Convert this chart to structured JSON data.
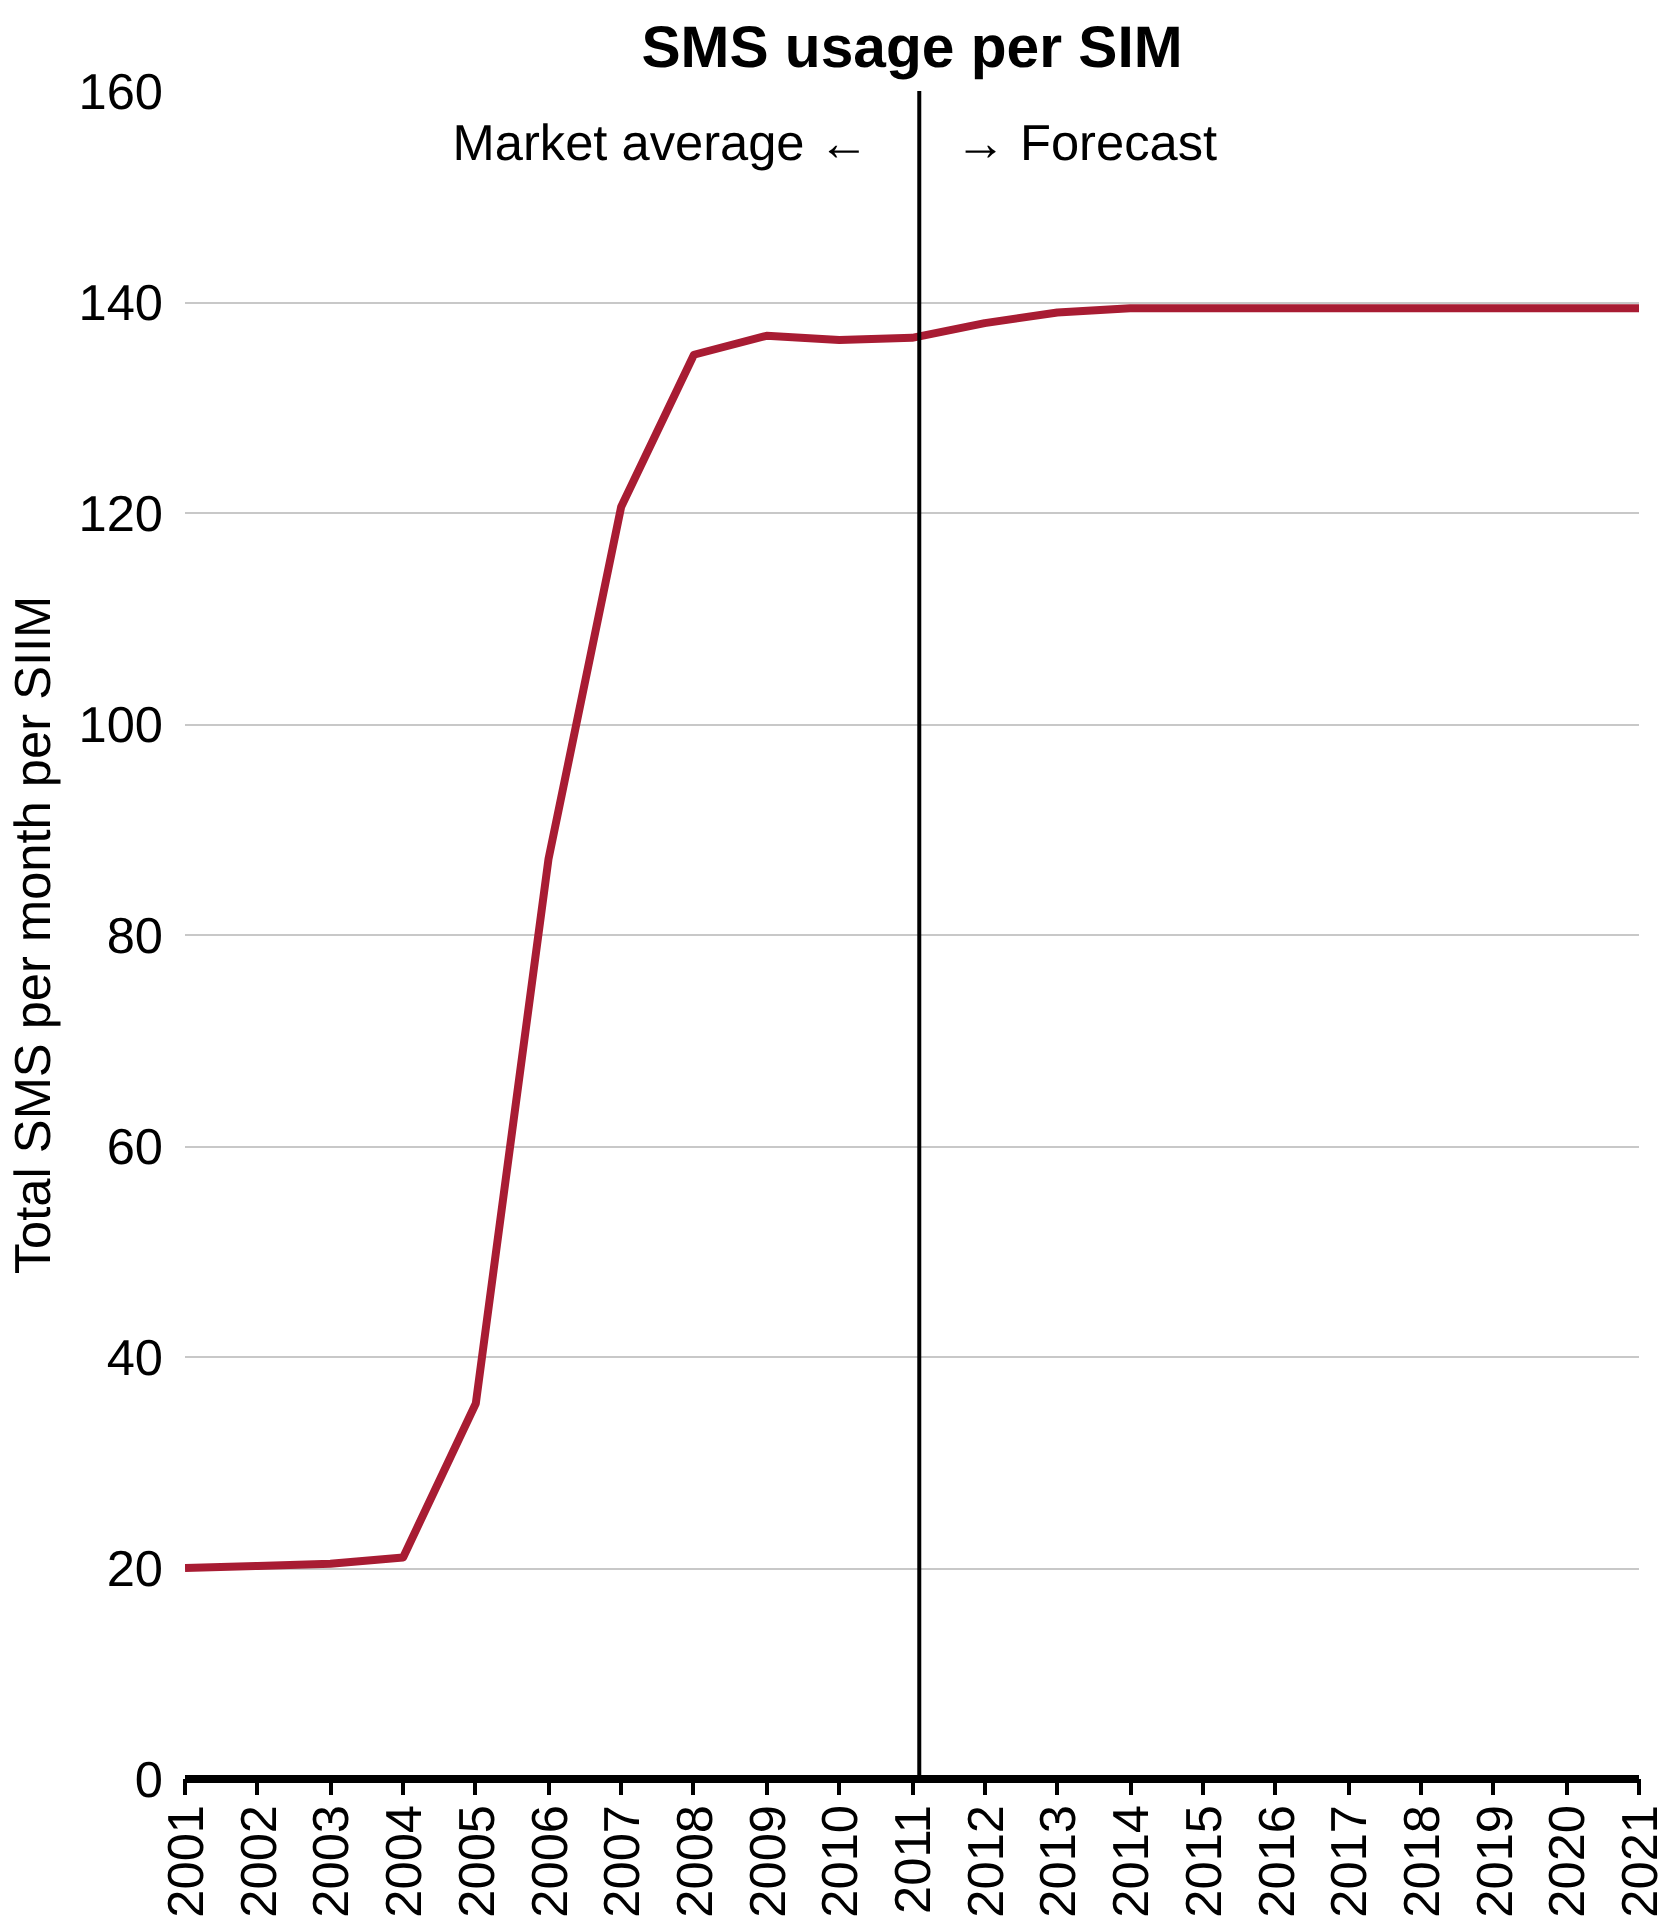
{
  "chart_data": {
    "type": "line",
    "title": "SMS usage per SIM",
    "ylabel": "Total SMS per month per SIIM",
    "x": [
      2001,
      2002,
      2003,
      2004,
      2005,
      2006,
      2007,
      2008,
      2009,
      2010,
      2011,
      2012,
      2013,
      2014,
      2015,
      2016,
      2017,
      2018,
      2019,
      2020,
      2021
    ],
    "series": [
      {
        "color": "#a81c33",
        "values": [
          20,
          20.2,
          20.4,
          21,
          35.6,
          87.2,
          120.6,
          135,
          136.8,
          136.4,
          136.6,
          138,
          139,
          139.4,
          139.4,
          139.4,
          139.4,
          139.4,
          139.4,
          139.4,
          139.4
        ]
      }
    ],
    "xlim": [
      2001,
      2021
    ],
    "xticks": [
      2001,
      2002,
      2003,
      2004,
      2005,
      2006,
      2007,
      2008,
      2009,
      2010,
      2011,
      2012,
      2013,
      2014,
      2015,
      2016,
      2017,
      2018,
      2019,
      2020,
      2021
    ],
    "ylim": [
      0,
      160
    ],
    "yticks": [
      0,
      20,
      40,
      60,
      80,
      100,
      120,
      140,
      160
    ],
    "ref_lines": [
      {
        "axis": "x",
        "value": 2011.1,
        "label": null,
        "color": "#000000"
      }
    ],
    "annotations": [
      {
        "text": "Market average ←",
        "x": 2011.1,
        "y": 155
      },
      {
        "text": "→ Forecast",
        "x": 2011.1,
        "y": 155
      }
    ],
    "grid": "y",
    "marker": "none",
    "line_style": "solid"
  }
}
